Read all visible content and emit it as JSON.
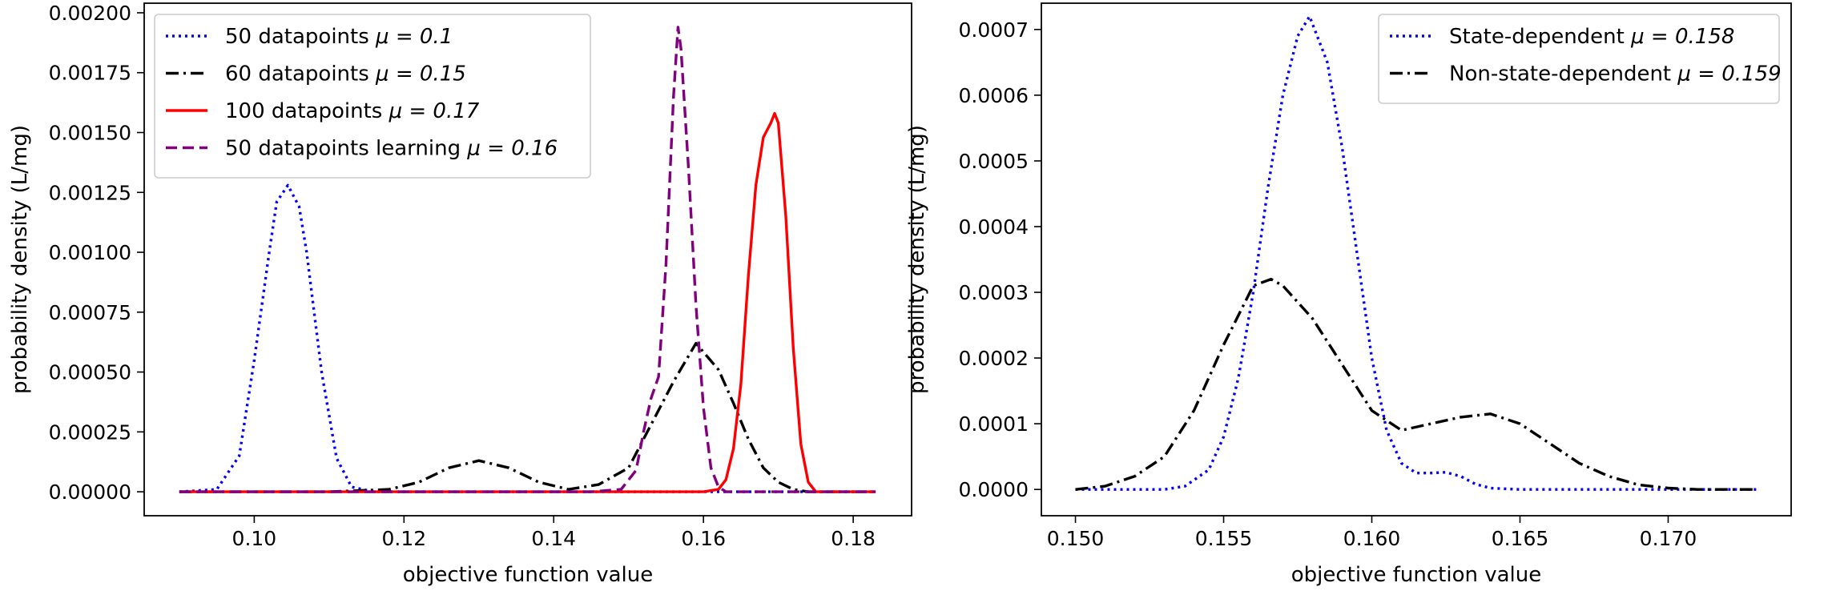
{
  "chart_data": [
    {
      "type": "line",
      "title": "",
      "xlabel": "objective function value",
      "ylabel": "probability density (L/mg)",
      "xlim": [
        0.0853,
        0.1878
      ],
      "ylim": [
        -0.0001,
        0.00204
      ],
      "xticks": [
        0.1,
        0.12,
        0.14,
        0.16,
        0.18
      ],
      "xtick_labels": [
        "0.10",
        "0.12",
        "0.14",
        "0.16",
        "0.18"
      ],
      "yticks": [
        0,
        0.00025,
        0.0005,
        0.00075,
        0.001,
        0.00125,
        0.0015,
        0.00175,
        0.002
      ],
      "ytick_labels": [
        "0.00000",
        "0.00025",
        "0.00050",
        "0.00075",
        "0.00100",
        "0.00125",
        "0.00150",
        "0.00175",
        "0.00200"
      ],
      "legend_position": "top-left",
      "series": [
        {
          "name": "50 datapoints",
          "mu_label": "μ = 0.1",
          "color": "#0000ff",
          "style": "dotted",
          "x": [
            0.09,
            0.095,
            0.098,
            0.1,
            0.102,
            0.103,
            0.1045,
            0.106,
            0.107,
            0.109,
            0.111,
            0.113,
            0.116,
            0.12,
            0.14,
            0.16,
            0.183
          ],
          "y": [
            0,
            1e-05,
            0.00015,
            0.00055,
            0.001,
            0.00121,
            0.00128,
            0.00119,
            0.001,
            0.0005,
            0.00014,
            2e-05,
            0,
            0,
            0,
            0,
            0
          ]
        },
        {
          "name": "60 datapoints",
          "mu_label": "μ = 0.15",
          "color": "#000000",
          "style": "dashdot",
          "x": [
            0.09,
            0.11,
            0.118,
            0.122,
            0.126,
            0.13,
            0.134,
            0.138,
            0.142,
            0.146,
            0.15,
            0.153,
            0.156,
            0.159,
            0.162,
            0.164,
            0.166,
            0.168,
            0.17,
            0.172,
            0.174,
            0.177,
            0.183
          ],
          "y": [
            0,
            0,
            1e-05,
            4e-05,
            0.0001,
            0.00013,
            0.0001,
            4e-05,
            1e-05,
            3e-05,
            0.0001,
            0.00028,
            0.00046,
            0.00062,
            0.00051,
            0.00037,
            0.00022,
            0.0001,
            4e-05,
            1e-05,
            0,
            0,
            0
          ]
        },
        {
          "name": "100 datapoints",
          "mu_label": "μ = 0.17",
          "color": "#ff0000",
          "style": "solid",
          "x": [
            0.09,
            0.15,
            0.16,
            0.162,
            0.163,
            0.164,
            0.165,
            0.166,
            0.167,
            0.168,
            0.169,
            0.1695,
            0.17,
            0.171,
            0.172,
            0.173,
            0.174,
            0.175,
            0.183
          ],
          "y": [
            0,
            0,
            0,
            1e-05,
            5e-05,
            0.00018,
            0.00045,
            0.0009,
            0.00128,
            0.00148,
            0.00154,
            0.00158,
            0.00154,
            0.00115,
            0.0006,
            0.0002,
            4e-05,
            0,
            0
          ]
        },
        {
          "name": "50 datapoints learning",
          "mu_label": "μ = 0.16",
          "color": "#800080",
          "style": "dashed",
          "x": [
            0.09,
            0.145,
            0.149,
            0.151,
            0.152,
            0.153,
            0.154,
            0.155,
            0.156,
            0.1566,
            0.157,
            0.158,
            0.159,
            0.16,
            0.161,
            0.162,
            0.163,
            0.165,
            0.183
          ],
          "y": [
            0,
            0,
            1e-05,
            9e-05,
            0.00025,
            0.00039,
            0.00048,
            0.00095,
            0.00165,
            0.00194,
            0.00185,
            0.00135,
            0.00078,
            0.00035,
            0.0001,
            2e-05,
            0,
            0,
            0
          ]
        }
      ]
    },
    {
      "type": "line",
      "title": "",
      "xlabel": "objective function value",
      "ylabel": "probability density (L/mg)",
      "xlim": [
        0.14885,
        0.17415
      ],
      "ylim": [
        -4e-05,
        0.00074
      ],
      "xticks": [
        0.15,
        0.155,
        0.16,
        0.165,
        0.17
      ],
      "xtick_labels": [
        "0.150",
        "0.155",
        "0.160",
        "0.165",
        "0.170"
      ],
      "yticks": [
        0,
        0.0001,
        0.0002,
        0.0003,
        0.0004,
        0.0005,
        0.0006,
        0.0007
      ],
      "ytick_labels": [
        "0.0000",
        "0.0001",
        "0.0002",
        "0.0003",
        "0.0004",
        "0.0005",
        "0.0006",
        "0.0007"
      ],
      "legend_position": "top-right",
      "series": [
        {
          "name": "State-dependent",
          "mu_label": "μ = 0.158",
          "color": "#0000ff",
          "style": "dotted",
          "x": [
            0.15,
            0.153,
            0.1537,
            0.1545,
            0.155,
            0.1555,
            0.156,
            0.1565,
            0.157,
            0.1575,
            0.1579,
            0.1585,
            0.159,
            0.1595,
            0.16,
            0.1605,
            0.161,
            0.1615,
            0.162,
            0.1625,
            0.163,
            0.1635,
            0.164,
            0.165,
            0.17,
            0.173
          ],
          "y": [
            0,
            0,
            5e-06,
            3e-05,
            8e-05,
            0.00017,
            0.0003,
            0.00046,
            0.0006,
            0.00069,
            0.00072,
            0.00065,
            0.00052,
            0.00036,
            0.0002,
            9e-05,
            4e-05,
            2.5e-05,
            2.5e-05,
            2.6e-05,
            2e-05,
            8e-06,
            2e-06,
            0,
            0,
            0
          ]
        },
        {
          "name": "Non-state-dependent",
          "mu_label": "μ = 0.159",
          "color": "#000000",
          "style": "dashdot",
          "x": [
            0.15,
            0.151,
            0.152,
            0.153,
            0.154,
            0.155,
            0.156,
            0.1566,
            0.157,
            0.158,
            0.159,
            0.16,
            0.161,
            0.162,
            0.163,
            0.164,
            0.165,
            0.166,
            0.167,
            0.168,
            0.169,
            0.17,
            0.171,
            0.173
          ],
          "y": [
            0,
            5e-06,
            2e-05,
            5e-05,
            0.00012,
            0.00022,
            0.00031,
            0.00032,
            0.00031,
            0.00026,
            0.00019,
            0.00012,
            9e-05,
            0.0001,
            0.00011,
            0.000115,
            0.0001,
            7e-05,
            4e-05,
            2e-05,
            7e-06,
            2e-06,
            0,
            0
          ]
        }
      ]
    }
  ]
}
